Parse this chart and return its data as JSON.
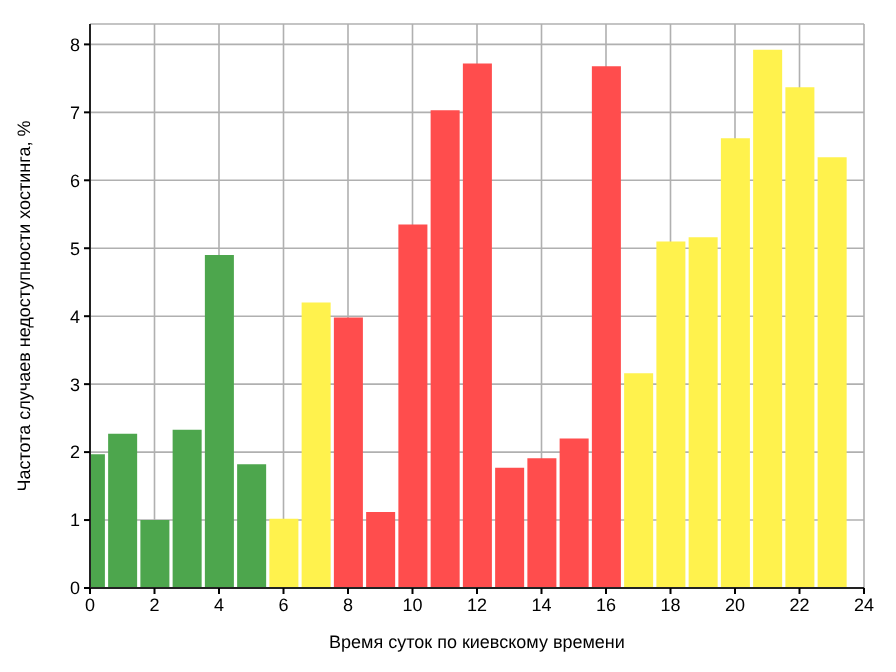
{
  "chart_data": {
    "type": "bar",
    "xlabel": "Время суток по киевскому времени",
    "ylabel": "Частота случаев недоступности хостинга, %",
    "x": [
      0,
      1,
      2,
      3,
      4,
      5,
      6,
      7,
      8,
      9,
      10,
      11,
      12,
      13,
      14,
      15,
      16,
      17,
      18,
      19,
      20,
      21,
      22,
      23
    ],
    "values": [
      1.97,
      2.27,
      1.0,
      2.33,
      4.9,
      1.82,
      1.02,
      4.2,
      3.98,
      1.12,
      5.35,
      7.03,
      7.72,
      1.77,
      1.91,
      2.2,
      7.68,
      3.16,
      5.1,
      5.16,
      6.62,
      7.92,
      7.37,
      6.34
    ],
    "colors": [
      "#4da64d",
      "#4da64d",
      "#4da64d",
      "#4da64d",
      "#4da64d",
      "#4da64d",
      "#fff24d",
      "#fff24d",
      "#ff4d4d",
      "#ff4d4d",
      "#ff4d4d",
      "#ff4d4d",
      "#ff4d4d",
      "#ff4d4d",
      "#ff4d4d",
      "#ff4d4d",
      "#ff4d4d",
      "#fff24d",
      "#fff24d",
      "#fff24d",
      "#fff24d",
      "#fff24d",
      "#fff24d",
      "#fff24d"
    ],
    "xlim": [
      0,
      24
    ],
    "xticks": [
      0,
      2,
      4,
      6,
      8,
      10,
      12,
      14,
      16,
      18,
      20,
      22,
      24
    ],
    "ylim": [
      0,
      8.3
    ],
    "yticks": [
      0,
      1,
      2,
      3,
      4,
      5,
      6,
      7,
      8
    ],
    "grid": true
  }
}
